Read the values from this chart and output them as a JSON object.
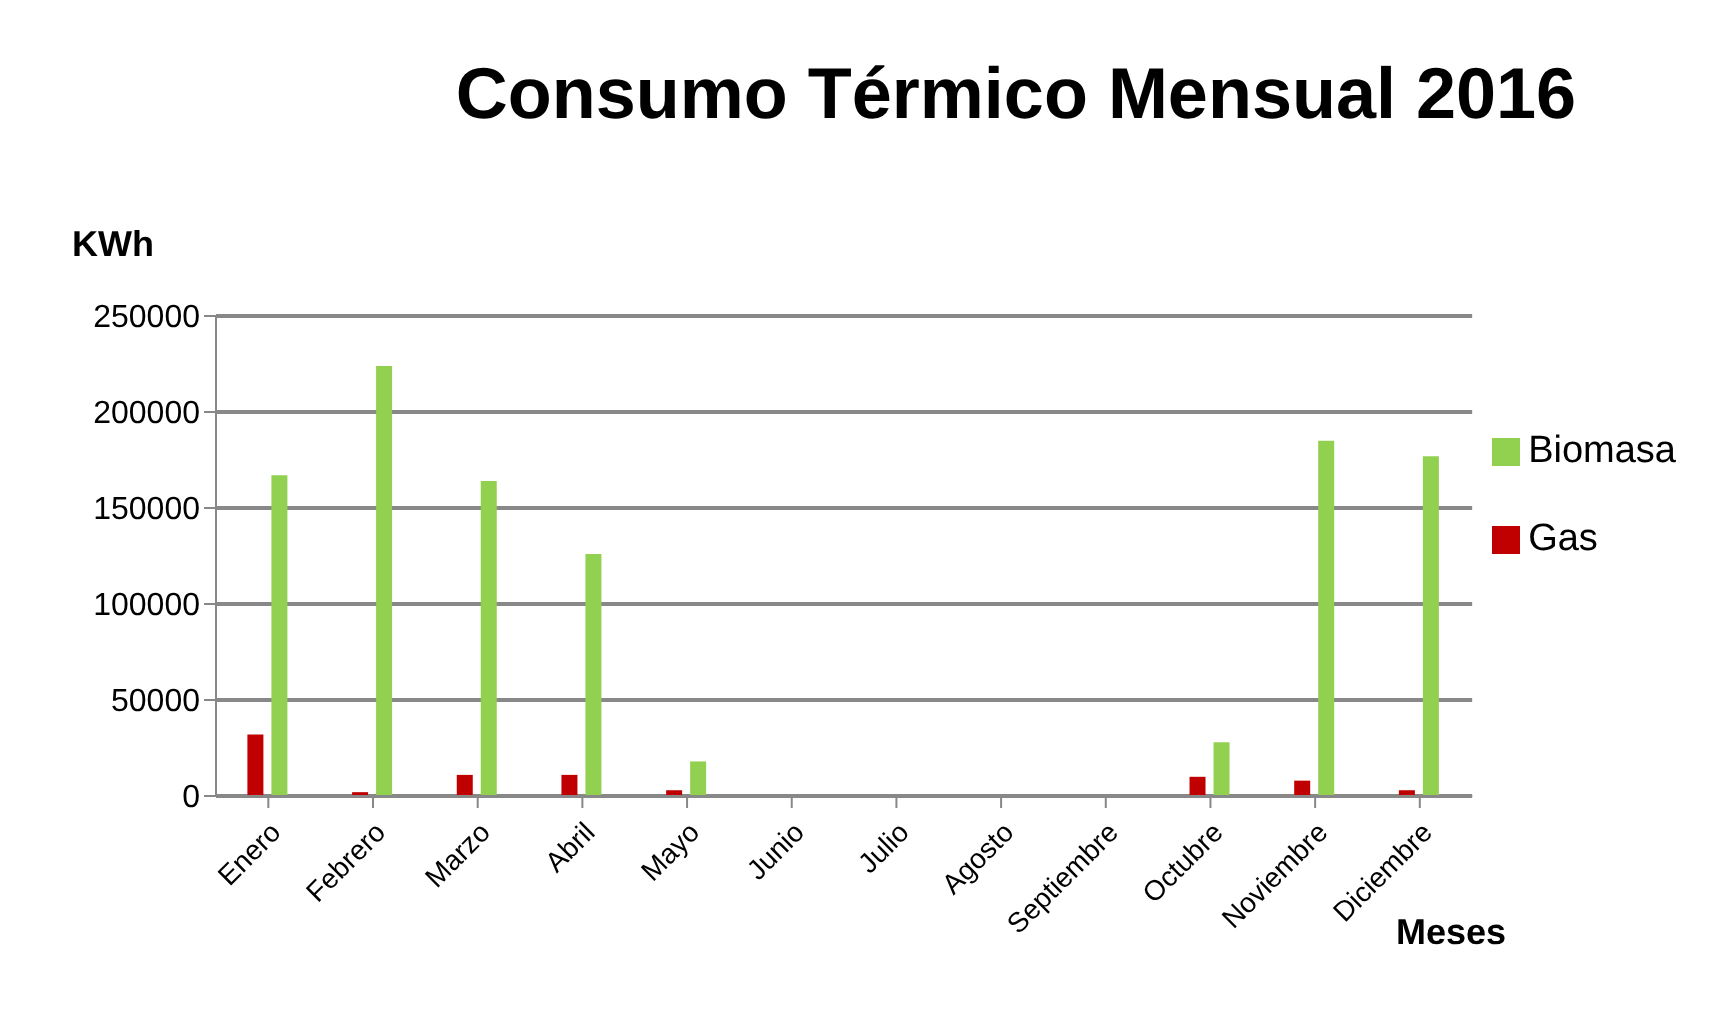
{
  "chart_data": {
    "type": "bar",
    "title": "Consumo Térmico Mensual 2016",
    "xlabel": "Meses",
    "ylabel": "KWh",
    "categories": [
      "Enero",
      "Febrero",
      "Marzo",
      "Abril",
      "Mayo",
      "Junio",
      "Julio",
      "Agosto",
      "Septiembre",
      "Octubre",
      "Noviembre",
      "Diciembre"
    ],
    "series": [
      {
        "name": "Gas",
        "color": "#c00000",
        "values": [
          32000,
          2000,
          11000,
          11000,
          3000,
          0,
          0,
          0,
          0,
          10000,
          8000,
          3000
        ]
      },
      {
        "name": "Biomasa",
        "color": "#92d050",
        "values": [
          167000,
          224000,
          164000,
          126000,
          18000,
          0,
          0,
          0,
          0,
          28000,
          185000,
          177000
        ]
      }
    ],
    "ylim": [
      0,
      250000
    ],
    "yticks": [
      0,
      50000,
      100000,
      150000,
      200000,
      250000
    ],
    "grid": "y",
    "legend": "right"
  }
}
